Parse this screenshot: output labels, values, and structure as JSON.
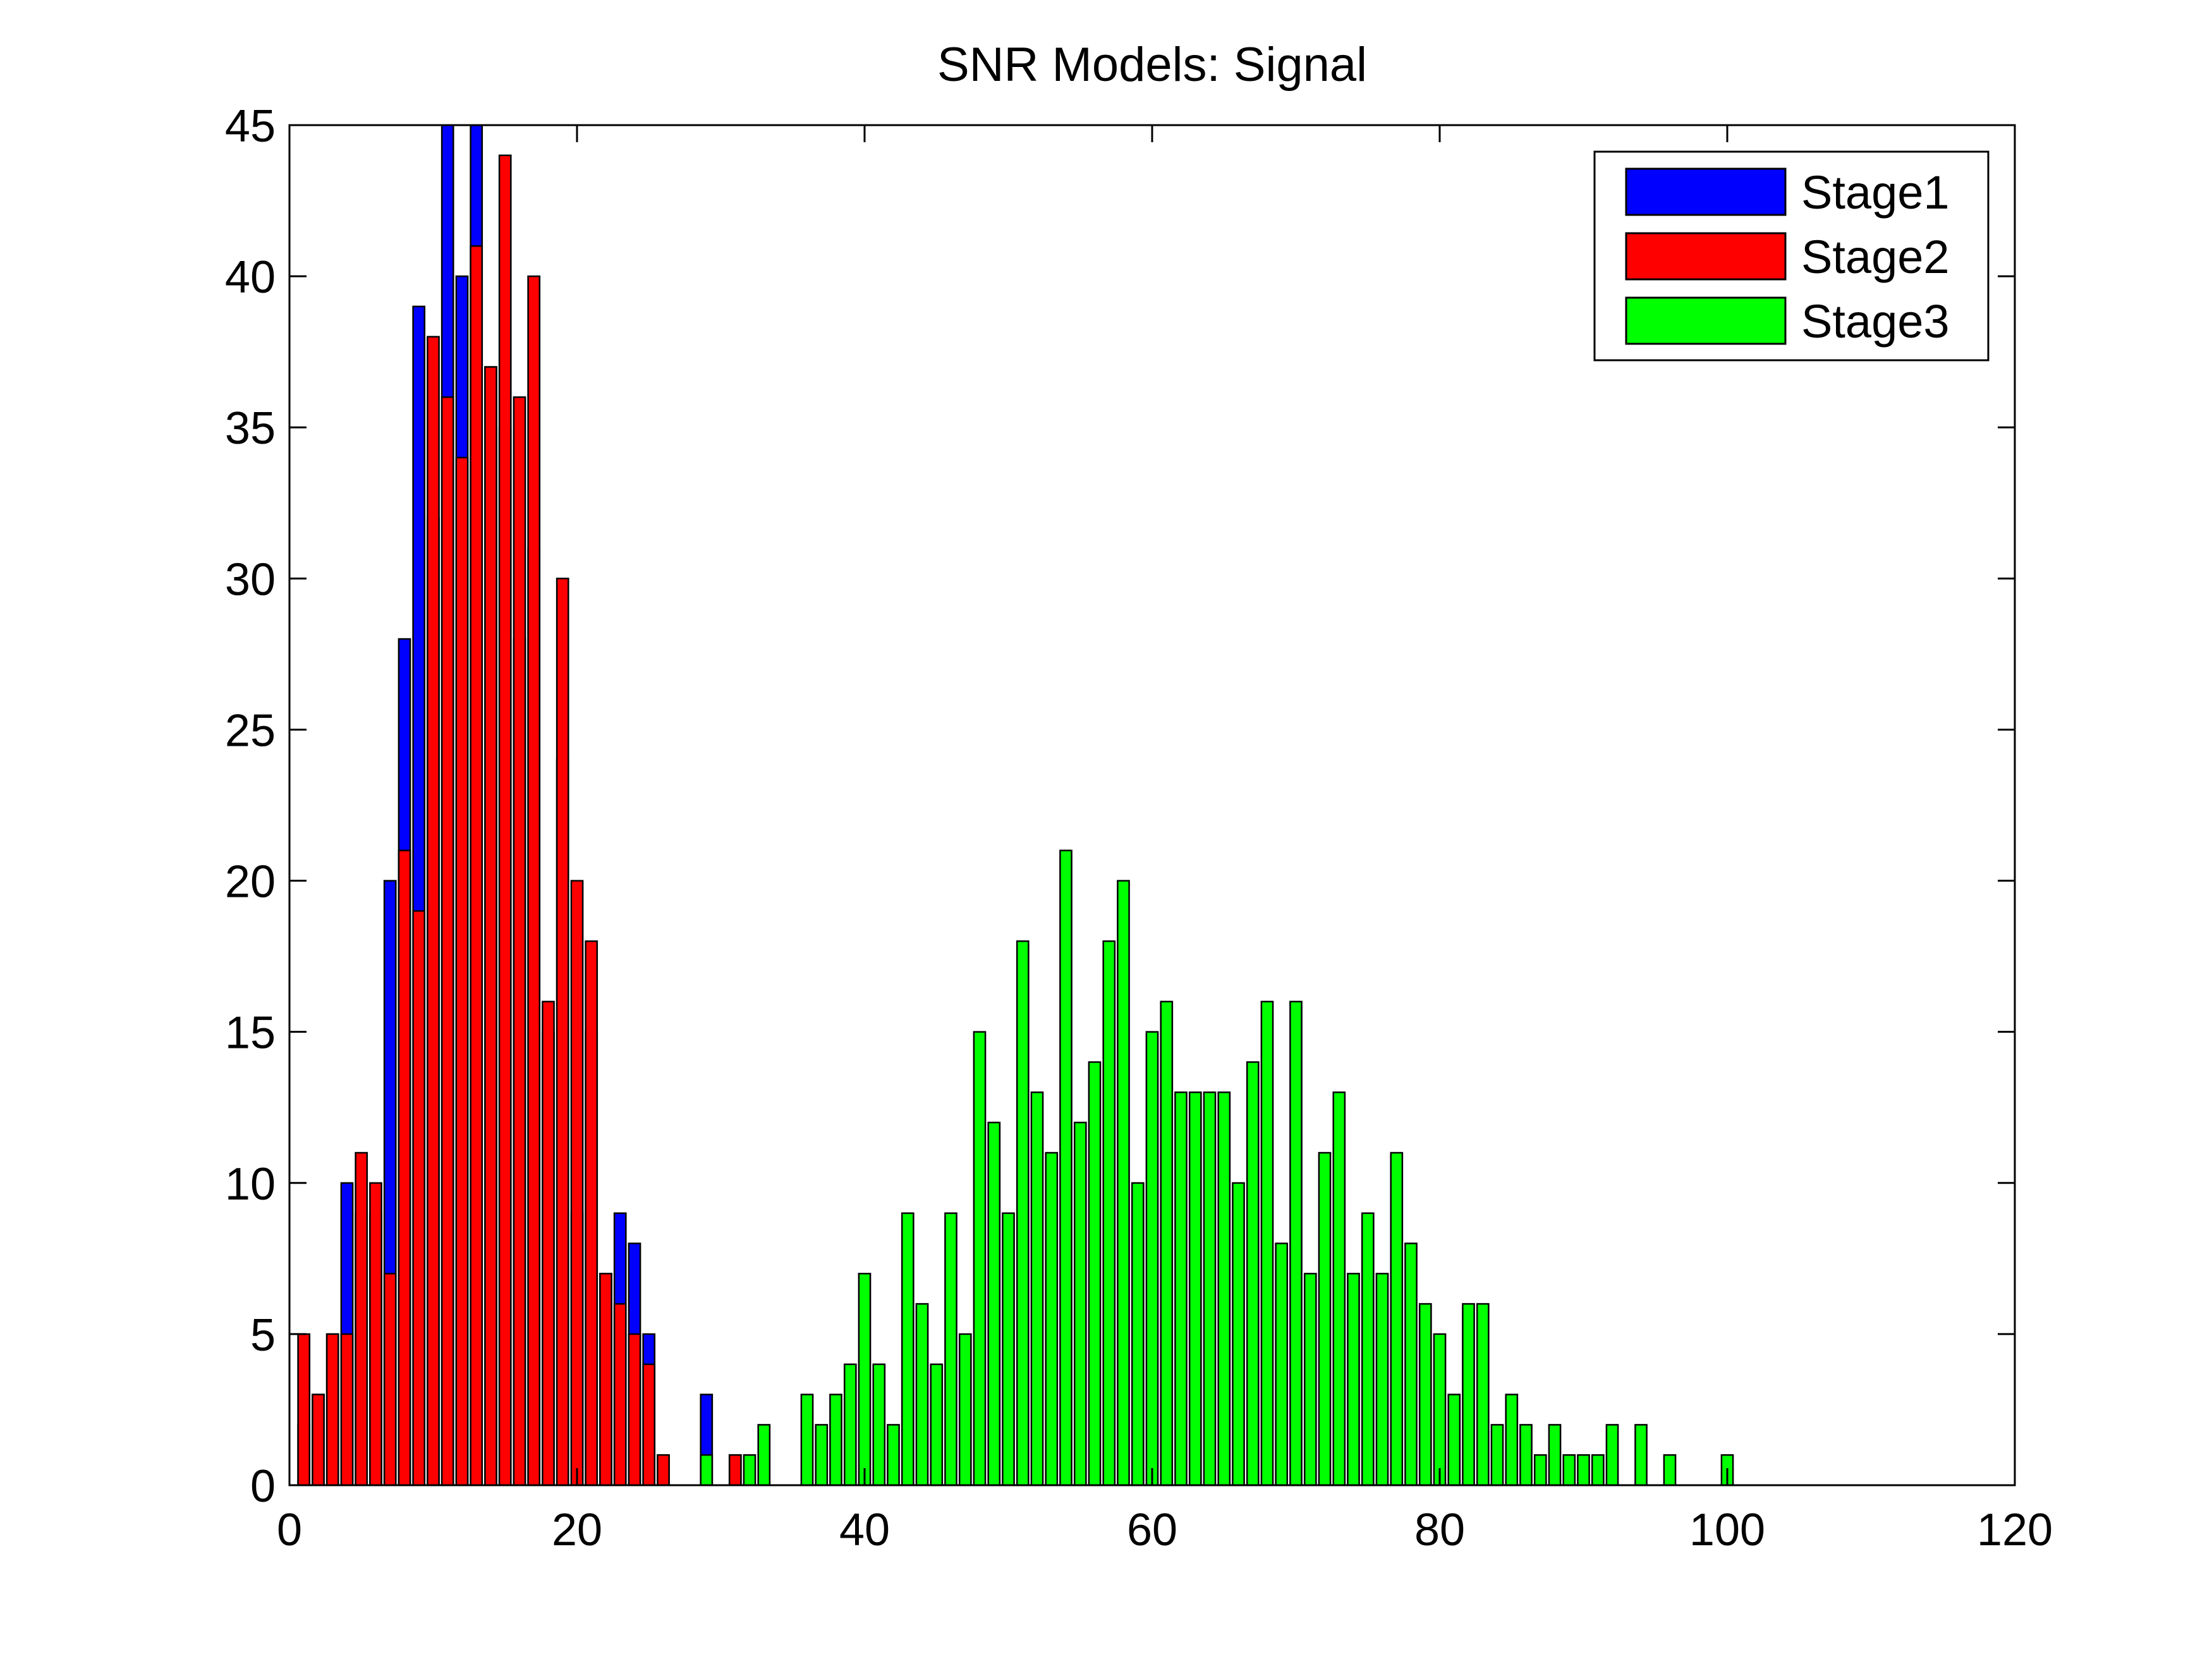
{
  "chart_data": {
    "type": "bar",
    "title": "SNR Models: Signal",
    "xlabel": "",
    "ylabel": "",
    "xlim": [
      0,
      120
    ],
    "ylim": [
      0,
      45
    ],
    "xticks": [
      0,
      20,
      40,
      60,
      80,
      100,
      120
    ],
    "yticks": [
      0,
      5,
      10,
      15,
      20,
      25,
      30,
      35,
      40,
      45
    ],
    "bin_width": 1,
    "grid": false,
    "legend_position": "top-right",
    "series": [
      {
        "name": "Stage1",
        "color": "#0000ff",
        "points": [
          [
            1,
            2
          ],
          [
            2,
            3
          ],
          [
            3,
            5
          ],
          [
            4,
            10
          ],
          [
            5,
            9
          ],
          [
            6,
            9
          ],
          [
            7,
            20
          ],
          [
            8,
            28
          ],
          [
            9,
            39
          ],
          [
            10,
            32
          ],
          [
            11,
            45
          ],
          [
            12,
            40
          ],
          [
            13,
            45
          ],
          [
            14,
            37
          ],
          [
            15,
            35
          ],
          [
            16,
            28
          ],
          [
            17,
            31
          ],
          [
            18,
            15
          ],
          [
            19,
            24
          ],
          [
            20,
            9
          ],
          [
            21,
            15
          ],
          [
            22,
            7
          ],
          [
            23,
            9
          ],
          [
            24,
            8
          ],
          [
            25,
            5
          ],
          [
            26,
            1
          ],
          [
            29,
            3
          ],
          [
            31,
            1
          ]
        ]
      },
      {
        "name": "Stage2",
        "color": "#ff0000",
        "points": [
          [
            1,
            5
          ],
          [
            2,
            3
          ],
          [
            3,
            5
          ],
          [
            4,
            5
          ],
          [
            5,
            11
          ],
          [
            6,
            10
          ],
          [
            7,
            7
          ],
          [
            8,
            21
          ],
          [
            9,
            19
          ],
          [
            10,
            38
          ],
          [
            11,
            36
          ],
          [
            12,
            34
          ],
          [
            13,
            41
          ],
          [
            14,
            37
          ],
          [
            15,
            44
          ],
          [
            16,
            36
          ],
          [
            17,
            40
          ],
          [
            18,
            16
          ],
          [
            19,
            30
          ],
          [
            20,
            20
          ],
          [
            21,
            18
          ],
          [
            22,
            7
          ],
          [
            23,
            6
          ],
          [
            24,
            5
          ],
          [
            25,
            4
          ],
          [
            26,
            1
          ],
          [
            31,
            1
          ]
        ]
      },
      {
        "name": "Stage3",
        "color": "#00ff00",
        "points": [
          [
            29,
            1
          ],
          [
            32,
            1
          ],
          [
            33,
            2
          ],
          [
            36,
            3
          ],
          [
            37,
            2
          ],
          [
            38,
            3
          ],
          [
            39,
            4
          ],
          [
            40,
            7
          ],
          [
            41,
            4
          ],
          [
            42,
            2
          ],
          [
            43,
            9
          ],
          [
            44,
            6
          ],
          [
            45,
            4
          ],
          [
            46,
            9
          ],
          [
            47,
            5
          ],
          [
            48,
            15
          ],
          [
            49,
            12
          ],
          [
            50,
            9
          ],
          [
            51,
            18
          ],
          [
            52,
            13
          ],
          [
            53,
            11
          ],
          [
            54,
            21
          ],
          [
            55,
            12
          ],
          [
            56,
            14
          ],
          [
            57,
            18
          ],
          [
            58,
            20
          ],
          [
            59,
            10
          ],
          [
            60,
            15
          ],
          [
            61,
            16
          ],
          [
            62,
            13
          ],
          [
            63,
            13
          ],
          [
            64,
            13
          ],
          [
            65,
            13
          ],
          [
            66,
            10
          ],
          [
            67,
            14
          ],
          [
            68,
            16
          ],
          [
            69,
            8
          ],
          [
            70,
            16
          ],
          [
            71,
            7
          ],
          [
            72,
            11
          ],
          [
            73,
            13
          ],
          [
            74,
            7
          ],
          [
            75,
            9
          ],
          [
            76,
            7
          ],
          [
            77,
            11
          ],
          [
            78,
            8
          ],
          [
            79,
            6
          ],
          [
            80,
            5
          ],
          [
            81,
            3
          ],
          [
            82,
            6
          ],
          [
            83,
            6
          ],
          [
            84,
            2
          ],
          [
            85,
            3
          ],
          [
            86,
            2
          ],
          [
            87,
            1
          ],
          [
            88,
            2
          ],
          [
            89,
            1
          ],
          [
            90,
            1
          ],
          [
            91,
            1
          ],
          [
            92,
            2
          ],
          [
            94,
            2
          ],
          [
            96,
            1
          ],
          [
            100,
            1
          ]
        ]
      }
    ]
  }
}
